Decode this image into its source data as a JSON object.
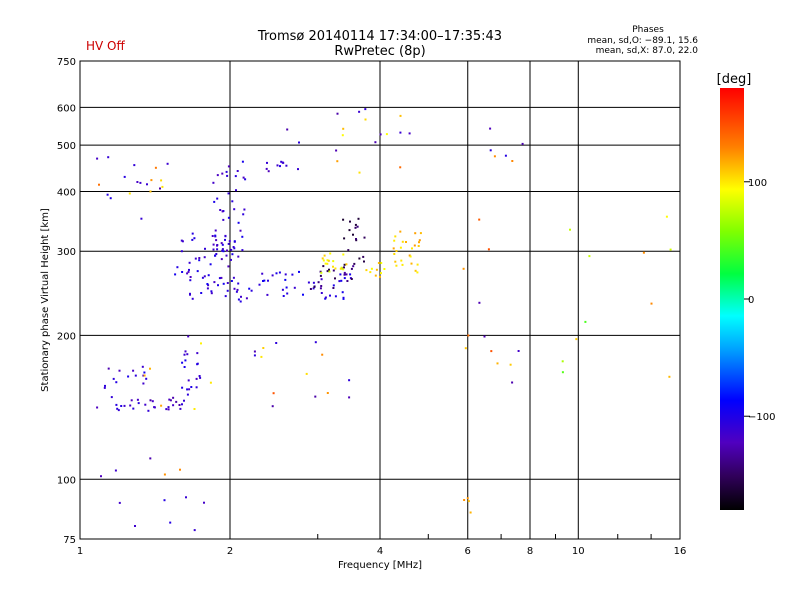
{
  "status_label": "HV Off",
  "colors": {
    "status": "#cc0000",
    "grid": "#000000",
    "background": "#ffffff"
  },
  "chart_data": {
    "type": "scatter",
    "title": "Tromsø 20140114 17:34:00–17:35:43",
    "subtitle": "RwPretec (8p)",
    "xlabel": "Frequency [MHz]",
    "ylabel": "Stationary phase Virtual Height [km]",
    "x_scale": "log",
    "y_scale": "log",
    "xlim": [
      1,
      16
    ],
    "ylim": [
      75,
      750
    ],
    "x_ticks": [
      1,
      2,
      4,
      6,
      8,
      10,
      16
    ],
    "x_tick_labels": [
      "1",
      "2",
      "4",
      "6",
      "8",
      "10",
      "16"
    ],
    "y_ticks": [
      75,
      100,
      200,
      300,
      400,
      500,
      600,
      750
    ],
    "y_tick_labels": [
      "75",
      "100",
      "200",
      "300",
      "400",
      "500",
      "600",
      "750"
    ],
    "grid": true,
    "stats": {
      "heading": "Phases",
      "line_o": "mean, sd,O: −89.1, 15.6",
      "line_x": "mean, sd,X:  87.0, 22.0"
    },
    "colorbar": {
      "label": "[deg]",
      "range": [
        -180,
        180
      ],
      "ticks": [
        100,
        0,
        -100
      ],
      "tick_labels": [
        "100",
        "0",
        "−100"
      ]
    },
    "clusters": [
      {
        "n": 30,
        "f": [
          1.08,
          1.62
        ],
        "h": [
          138,
          150
        ],
        "phase": [
          -130,
          -100
        ]
      },
      {
        "n": 14,
        "f": [
          1.12,
          1.4
        ],
        "h": [
          150,
          172
        ],
        "phase": [
          -130,
          -95
        ]
      },
      {
        "n": 20,
        "f": [
          1.58,
          1.78
        ],
        "h": [
          150,
          200
        ],
        "phase": [
          -125,
          -95
        ]
      },
      {
        "n": 50,
        "f": [
          1.55,
          2.05
        ],
        "h": [
          262,
          330
        ],
        "phase": [
          -125,
          -95
        ]
      },
      {
        "n": 40,
        "f": [
          1.85,
          2.15
        ],
        "h": [
          290,
          470
        ],
        "phase": [
          -125,
          -95
        ]
      },
      {
        "n": 26,
        "f": [
          1.65,
          2.2
        ],
        "h": [
          235,
          262
        ],
        "phase": [
          -120,
          -90
        ]
      },
      {
        "n": 40,
        "f": [
          2.2,
          3.5
        ],
        "h": [
          238,
          272
        ],
        "phase": [
          -120,
          -90
        ]
      },
      {
        "n": 22,
        "f": [
          2.9,
          3.6
        ],
        "h": [
          250,
          285
        ],
        "phase": [
          -160,
          -130
        ]
      },
      {
        "n": 18,
        "f": [
          3.35,
          3.75
        ],
        "h": [
          280,
          360
        ],
        "phase": [
          -165,
          -140
        ]
      },
      {
        "n": 18,
        "f": [
          3.05,
          3.5
        ],
        "h": [
          270,
          300
        ],
        "phase": [
          80,
          110
        ]
      },
      {
        "n": 26,
        "f": [
          4.25,
          4.85
        ],
        "h": [
          270,
          330
        ],
        "phase": [
          95,
          125
        ]
      },
      {
        "n": 10,
        "f": [
          3.7,
          4.1
        ],
        "h": [
          260,
          285
        ],
        "phase": [
          90,
          115
        ]
      },
      {
        "n": 10,
        "f": [
          2.35,
          2.75
        ],
        "h": [
          440,
          470
        ],
        "phase": [
          -130,
          -100
        ]
      },
      {
        "n": 12,
        "f": [
          1.05,
          1.55
        ],
        "h": [
          350,
          480
        ],
        "phase": [
          -130,
          -95
        ]
      },
      {
        "n": 7,
        "f": [
          1.05,
          1.5
        ],
        "h": [
          370,
          500
        ],
        "phase": [
          100,
          140
        ]
      },
      {
        "n": 10,
        "f": [
          2.6,
          4.8
        ],
        "h": [
          480,
          600
        ],
        "phase": [
          -130,
          -100
        ]
      },
      {
        "n": 8,
        "f": [
          3.0,
          4.5
        ],
        "h": [
          400,
          600
        ],
        "phase": [
          90,
          140
        ]
      },
      {
        "n": 10,
        "f": [
          5.8,
          7.8
        ],
        "h": [
          85,
          600
        ],
        "phase": [
          100,
          150
        ]
      },
      {
        "n": 8,
        "f": [
          6.2,
          8.0
        ],
        "h": [
          85,
          580
        ],
        "phase": [
          -130,
          -100
        ]
      },
      {
        "n": 6,
        "f": [
          9.2,
          10.6
        ],
        "h": [
          160,
          360
        ],
        "phase": [
          40,
          110
        ]
      },
      {
        "n": 5,
        "f": [
          13.5,
          15.8
        ],
        "h": [
          140,
          480
        ],
        "phase": [
          80,
          130
        ]
      },
      {
        "n": 10,
        "f": [
          1.1,
          1.8
        ],
        "h": [
          78,
          130
        ],
        "phase": [
          -130,
          -100
        ]
      },
      {
        "n": 8,
        "f": [
          1.2,
          1.9
        ],
        "h": [
          100,
          200
        ],
        "phase": [
          90,
          130
        ]
      },
      {
        "n": 8,
        "f": [
          2.2,
          3.8
        ],
        "h": [
          140,
          200
        ],
        "phase": [
          -130,
          -100
        ]
      },
      {
        "n": 6,
        "f": [
          2.3,
          3.2
        ],
        "h": [
          150,
          200
        ],
        "phase": [
          100,
          150
        ]
      },
      {
        "n": 4,
        "f": [
          5.8,
          6.3
        ],
        "h": [
          85,
          100
        ],
        "phase": [
          110,
          140
        ]
      }
    ]
  }
}
